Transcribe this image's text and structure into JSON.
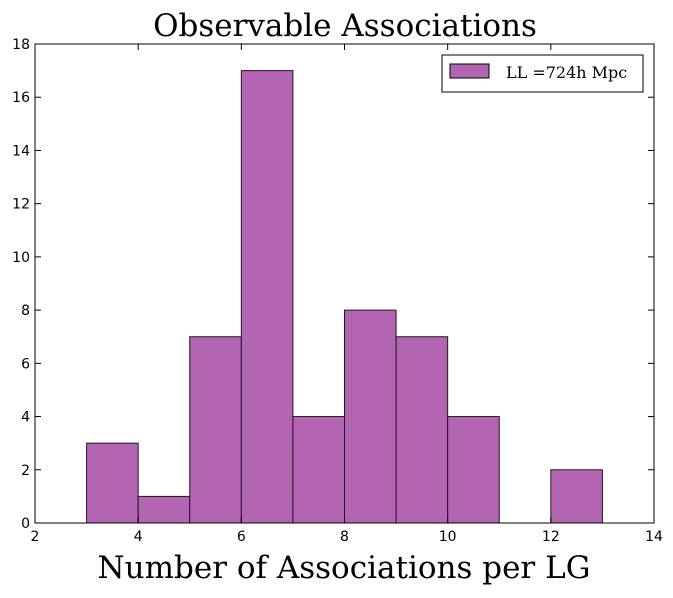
{
  "chart_data": {
    "type": "bar",
    "title": "Observable Associations",
    "xlabel": "Number of Associations per LG",
    "ylabel": "",
    "xlim": [
      2,
      14
    ],
    "ylim": [
      0,
      18
    ],
    "xticks": [
      2,
      4,
      6,
      8,
      10,
      12,
      14
    ],
    "yticks": [
      0,
      2,
      4,
      6,
      8,
      10,
      12,
      14,
      16,
      18
    ],
    "grid": false,
    "legend_position": "top-right",
    "series": [
      {
        "name": "LL =724h Mpc",
        "color": "#b266b2",
        "bins": [
          {
            "x0": 3,
            "x1": 4,
            "count": 3
          },
          {
            "x0": 4,
            "x1": 5,
            "count": 1
          },
          {
            "x0": 5,
            "x1": 6,
            "count": 7
          },
          {
            "x0": 6,
            "x1": 7,
            "count": 17
          },
          {
            "x0": 7,
            "x1": 8,
            "count": 4
          },
          {
            "x0": 8,
            "x1": 9,
            "count": 8
          },
          {
            "x0": 9,
            "x1": 10,
            "count": 7
          },
          {
            "x0": 10,
            "x1": 11,
            "count": 4
          },
          {
            "x0": 11,
            "x1": 12,
            "count": 0
          },
          {
            "x0": 12,
            "x1": 13,
            "count": 2
          }
        ]
      }
    ]
  }
}
